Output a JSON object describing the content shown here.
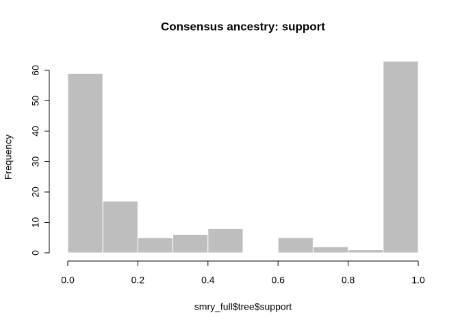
{
  "chart_data": {
    "type": "histogram",
    "title": "Consensus ancestry: support",
    "x_label": "smry_full$tree$support",
    "y_label": "Frequency",
    "bins": [
      0,
      0.1,
      0.2,
      0.3,
      0.4,
      0.5,
      0.6,
      0.7,
      0.8,
      0.9,
      1.0
    ],
    "values": [
      59,
      17,
      5,
      6,
      8,
      0,
      5,
      2,
      1,
      63
    ],
    "color": "#bebebe",
    "xlim": [
      0,
      1
    ],
    "ylim": [
      0,
      63
    ],
    "xticks": [
      {
        "value": 0,
        "label": "0.0"
      },
      0.2,
      0.4,
      0.6,
      0.8,
      {
        "value": 1,
        "label": "1.0"
      }
    ],
    "yticks": [
      0,
      10,
      20,
      30,
      40,
      50,
      60
    ]
  }
}
